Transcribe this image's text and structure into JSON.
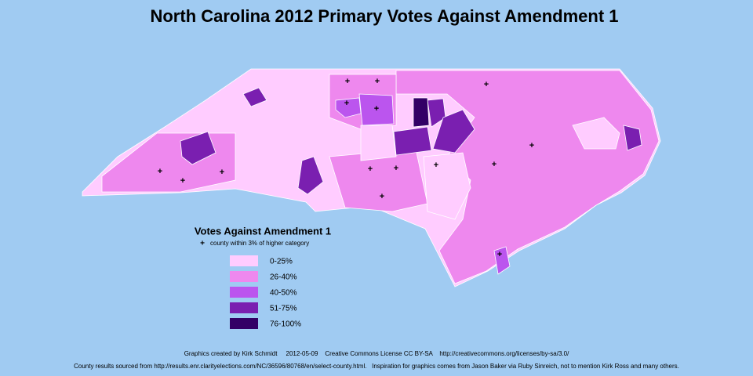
{
  "title": "North Carolina 2012 Primary Votes Against Amendment 1",
  "legend": {
    "title": "Votes Against Amendment 1",
    "marker": "+",
    "note": "county within 3% of higher category",
    "items": [
      {
        "label": "0-25%",
        "color": "#ffccff"
      },
      {
        "label": "26-40%",
        "color": "#ee88ee"
      },
      {
        "label": "40-50%",
        "color": "#bb55ee"
      },
      {
        "label": "51-75%",
        "color": "#7a1fb0"
      },
      {
        "label": "76-100%",
        "color": "#330066"
      }
    ]
  },
  "credits": [
    "Graphics created by Kirk Schmidt     2012-05-09    Creative Commons License CC BY-SA    http://creativecommons.org/licenses/by-sa/3.0/",
    "County results sourced from http://results.enr.clarityelections.com/NC/36596/80768/en/select-county.html.   Inspiration for graphics comes from Jason Baker via Ruby Sinreich, not to mention Kirk Ross and many others."
  ]
}
